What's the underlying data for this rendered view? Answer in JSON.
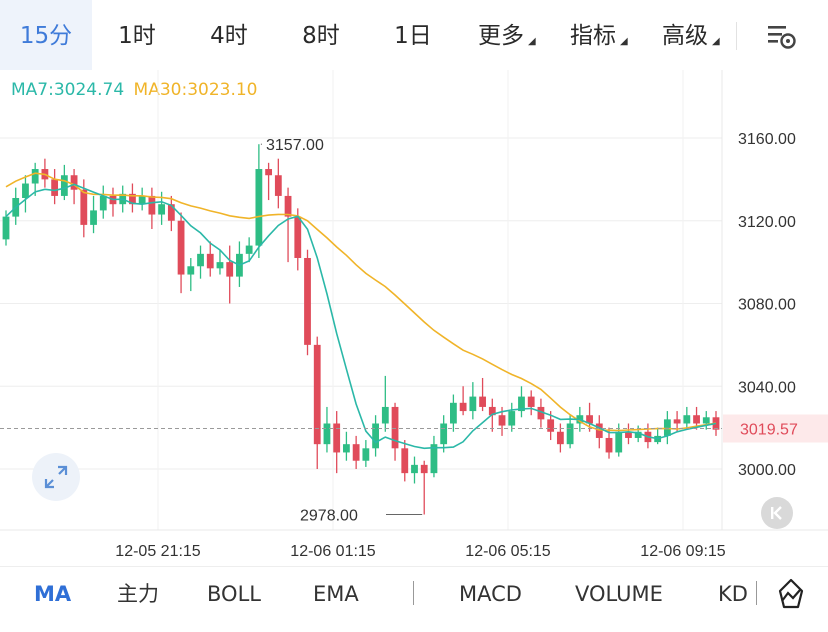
{
  "tabs": [
    {
      "label": "15分",
      "active": true
    },
    {
      "label": "1时"
    },
    {
      "label": "4时"
    },
    {
      "label": "8时"
    },
    {
      "label": "1日"
    },
    {
      "label": "更多",
      "dropdown": true
    },
    {
      "label": "指标",
      "dropdown": true
    },
    {
      "label": "高级",
      "dropdown": true
    }
  ],
  "legend": {
    "ma7": "MA7:3024.74",
    "ma30": "MA30:3023.10"
  },
  "colors": {
    "up": "#2ebd85",
    "down": "#e04b5a",
    "ma7": "#2bb8a8",
    "ma30": "#f0b429",
    "accent": "#3f7bd9"
  },
  "chart_data": {
    "type": "candlestick",
    "y_ticks": [
      "3160.00",
      "3120.00",
      "3080.00",
      "3040.00",
      "3000.00"
    ],
    "y_tick_values": [
      3160,
      3120,
      3080,
      3040,
      3000
    ],
    "x_ticks": [
      "12-05 21:15",
      "12-06 01:15",
      "12-06 05:15",
      "12-06 09:15"
    ],
    "current_price": "3019.57",
    "high_label": "3157.00",
    "low_label": "2978.00",
    "candles": [
      [
        3111,
        3122,
        3125,
        3108
      ],
      [
        3122,
        3131,
        3136,
        3118
      ],
      [
        3131,
        3138,
        3142,
        3124
      ],
      [
        3138,
        3145,
        3148,
        3132
      ],
      [
        3145,
        3140,
        3150,
        3136
      ],
      [
        3140,
        3132,
        3145,
        3128
      ],
      [
        3132,
        3142,
        3147,
        3130
      ],
      [
        3142,
        3135,
        3145,
        3128
      ],
      [
        3135,
        3118,
        3140,
        3112
      ],
      [
        3118,
        3125,
        3132,
        3114
      ],
      [
        3125,
        3132,
        3137,
        3121
      ],
      [
        3132,
        3128,
        3136,
        3122
      ],
      [
        3128,
        3133,
        3137,
        3124
      ],
      [
        3133,
        3128,
        3138,
        3124
      ],
      [
        3128,
        3132,
        3136,
        3125
      ],
      [
        3132,
        3123,
        3136,
        3116
      ],
      [
        3123,
        3128,
        3134,
        3118
      ],
      [
        3128,
        3120,
        3132,
        3115
      ],
      [
        3120,
        3094,
        3124,
        3085
      ],
      [
        3094,
        3098,
        3102,
        3086
      ],
      [
        3098,
        3104,
        3108,
        3092
      ],
      [
        3104,
        3097,
        3110,
        3093
      ],
      [
        3097,
        3100,
        3106,
        3094
      ],
      [
        3100,
        3093,
        3108,
        3080
      ],
      [
        3093,
        3104,
        3110,
        3088
      ],
      [
        3104,
        3108,
        3112,
        3100
      ],
      [
        3108,
        3145,
        3157,
        3102
      ],
      [
        3145,
        3142,
        3148,
        3130
      ],
      [
        3142,
        3132,
        3150,
        3126
      ],
      [
        3132,
        3122,
        3136,
        3100
      ],
      [
        3122,
        3102,
        3126,
        3096
      ],
      [
        3102,
        3060,
        3106,
        3055
      ],
      [
        3060,
        3012,
        3064,
        3000
      ],
      [
        3012,
        3022,
        3030,
        3008
      ],
      [
        3022,
        3008,
        3028,
        2998
      ],
      [
        3008,
        3012,
        3018,
        3004
      ],
      [
        3012,
        3004,
        3016,
        3000
      ],
      [
        3004,
        3010,
        3014,
        3001
      ],
      [
        3010,
        3022,
        3026,
        3006
      ],
      [
        3022,
        3030,
        3045,
        3018
      ],
      [
        3030,
        3010,
        3032,
        3004
      ],
      [
        3010,
        2998,
        3014,
        2994
      ],
      [
        2998,
        3002,
        3006,
        2993
      ],
      [
        3002,
        2998,
        3004,
        2978
      ],
      [
        2998,
        3012,
        3016,
        2996
      ],
      [
        3012,
        3022,
        3026,
        3008
      ],
      [
        3022,
        3032,
        3036,
        3018
      ],
      [
        3032,
        3028,
        3040,
        3026
      ],
      [
        3028,
        3035,
        3042,
        3024
      ],
      [
        3035,
        3030,
        3044,
        3028
      ],
      [
        3030,
        3026,
        3034,
        3018
      ],
      [
        3026,
        3021,
        3030,
        3016
      ],
      [
        3021,
        3028,
        3032,
        3018
      ],
      [
        3028,
        3035,
        3040,
        3025
      ],
      [
        3035,
        3030,
        3038,
        3026
      ],
      [
        3030,
        3024,
        3034,
        3020
      ],
      [
        3024,
        3018,
        3028,
        3014
      ],
      [
        3018,
        3012,
        3022,
        3008
      ],
      [
        3012,
        3022,
        3026,
        3010
      ],
      [
        3022,
        3026,
        3030,
        3018
      ],
      [
        3026,
        3022,
        3032,
        3018
      ],
      [
        3022,
        3015,
        3026,
        3010
      ],
      [
        3015,
        3008,
        3020,
        3005
      ],
      [
        3008,
        3018,
        3022,
        3006
      ],
      [
        3018,
        3015,
        3022,
        3012
      ],
      [
        3015,
        3018,
        3021,
        3013
      ],
      [
        3018,
        3013,
        3022,
        3010
      ],
      [
        3013,
        3016,
        3020,
        3012
      ],
      [
        3016,
        3024,
        3028,
        3012
      ],
      [
        3024,
        3022,
        3028,
        3018
      ],
      [
        3022,
        3026,
        3030,
        3019
      ],
      [
        3026,
        3022,
        3030,
        3019
      ],
      [
        3022,
        3025,
        3028,
        3019
      ],
      [
        3025,
        3019,
        3028,
        3016
      ]
    ]
  },
  "indicators": [
    "MA",
    "主力",
    "BOLL",
    "EMA",
    "MACD",
    "VOLUME",
    "KD"
  ]
}
